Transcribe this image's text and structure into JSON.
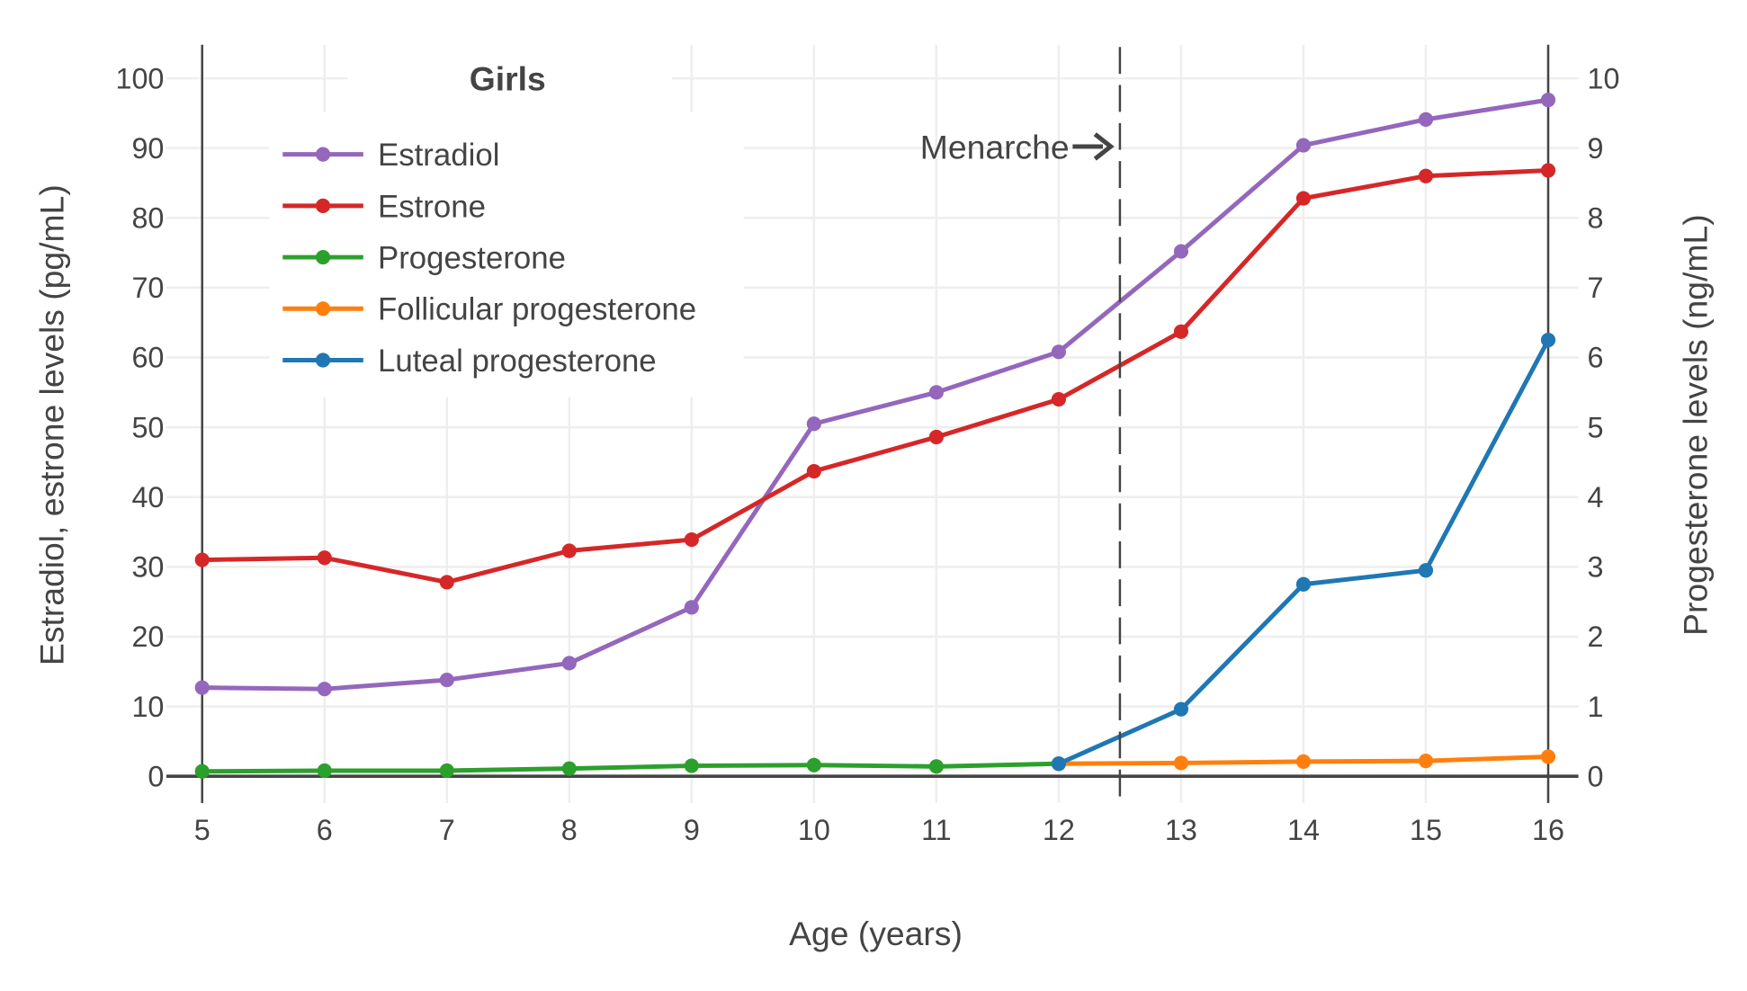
{
  "chart_data": {
    "type": "line",
    "title": "Girls",
    "xlabel": "Age (years)",
    "ylabel_left": "Estradiol, estrone levels (pg/mL)",
    "ylabel_right": "Progesterone levels (ng/mL)",
    "xlim": [
      5,
      16
    ],
    "ylim_left": [
      0,
      100
    ],
    "ylim_right": [
      0,
      10
    ],
    "x_ticks": [
      5,
      6,
      7,
      8,
      9,
      10,
      11,
      12,
      13,
      14,
      15,
      16
    ],
    "y_ticks_left": [
      0,
      10,
      20,
      30,
      40,
      50,
      60,
      70,
      80,
      90,
      100
    ],
    "y_ticks_right": [
      0,
      1,
      2,
      3,
      4,
      5,
      6,
      7,
      8,
      9,
      10
    ],
    "grid": true,
    "legend_position": "top-left",
    "annotation": {
      "text": "Menarche",
      "x": 12.5,
      "style": "dashed vertical line with arrow"
    },
    "series": [
      {
        "name": "Estradiol",
        "axis": "left",
        "color": "#9467bd",
        "x": [
          5,
          6,
          7,
          8,
          9,
          10,
          11,
          12,
          13,
          14,
          15,
          16
        ],
        "y": [
          12.7,
          12.5,
          13.8,
          16.2,
          24.2,
          50.5,
          55.0,
          60.8,
          75.2,
          90.4,
          94.1,
          96.9
        ]
      },
      {
        "name": "Estrone",
        "axis": "left",
        "color": "#d62728",
        "x": [
          5,
          6,
          7,
          8,
          9,
          10,
          11,
          12,
          13,
          14,
          15,
          16
        ],
        "y": [
          31.0,
          31.3,
          27.8,
          32.3,
          33.9,
          43.7,
          48.6,
          54.0,
          63.7,
          82.8,
          86.0,
          86.8
        ]
      },
      {
        "name": "Progesterone",
        "axis": "right",
        "color": "#2ca02c",
        "x": [
          5,
          6,
          7,
          8,
          9,
          10,
          11,
          12
        ],
        "y": [
          0.07,
          0.08,
          0.08,
          0.11,
          0.15,
          0.16,
          0.14,
          0.18
        ]
      },
      {
        "name": "Follicular progesterone",
        "axis": "right",
        "color": "#ff7f0e",
        "x": [
          12,
          13,
          14,
          15,
          16
        ],
        "y": [
          0.18,
          0.19,
          0.21,
          0.22,
          0.28
        ]
      },
      {
        "name": "Luteal progesterone",
        "axis": "right",
        "color": "#1f77b4",
        "x": [
          12,
          13,
          14,
          15,
          16
        ],
        "y": [
          0.18,
          0.96,
          2.75,
          2.95,
          6.25
        ]
      }
    ]
  }
}
